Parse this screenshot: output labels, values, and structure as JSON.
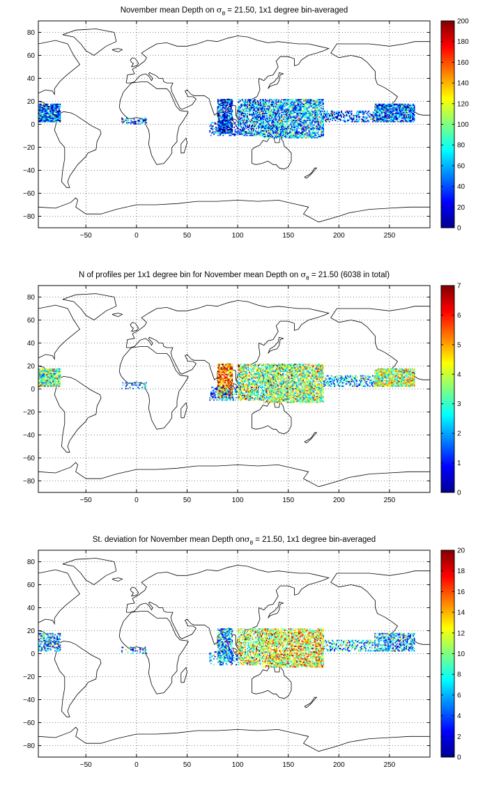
{
  "chart_data": [
    {
      "type": "heatmap",
      "title": {
        "pre": "November mean Depth on ",
        "sym": "σ",
        "sub": "θ",
        "post": " = 21.50, 1x1 degree bin-averaged"
      },
      "xlim": [
        -97,
        290
      ],
      "ylim": [
        -90,
        90
      ],
      "xticks": [
        -50,
        0,
        50,
        100,
        150,
        200,
        250
      ],
      "yticks": [
        -80,
        -60,
        -40,
        -20,
        0,
        20,
        40,
        60,
        80
      ],
      "grid": "dotted",
      "colorbar": {
        "min": 0,
        "max": 200,
        "ticks": [
          0,
          20,
          40,
          60,
          80,
          100,
          120,
          140,
          160,
          180,
          200
        ],
        "colormap": "jet"
      },
      "clusters": [
        {
          "region": "Caribbean / Central America",
          "x": [
            -97,
            -75
          ],
          "y": [
            2,
            18
          ],
          "density": 0.85,
          "level": 0.18
        },
        {
          "region": "Gulf of Guinea",
          "x": [
            -15,
            10
          ],
          "y": [
            0,
            6
          ],
          "density": 0.3,
          "level": 0.2
        },
        {
          "region": "Bay of Bengal",
          "x": [
            80,
            95
          ],
          "y": [
            -8,
            22
          ],
          "density": 0.8,
          "level": 0.15
        },
        {
          "region": "Eastern Indian Ocean",
          "x": [
            72,
            100
          ],
          "y": [
            -10,
            2
          ],
          "density": 0.35,
          "level": 0.15
        },
        {
          "region": "South China Sea / Maritime Continent",
          "x": [
            100,
            125
          ],
          "y": [
            -10,
            22
          ],
          "density": 0.6,
          "level": 0.25
        },
        {
          "region": "Western Pacific warm pool",
          "x": [
            125,
            185
          ],
          "y": [
            -12,
            22
          ],
          "density": 0.7,
          "level": 0.3
        },
        {
          "region": "Central Pacific band",
          "x": [
            185,
            235
          ],
          "y": [
            2,
            12
          ],
          "density": 0.45,
          "level": 0.2
        },
        {
          "region": "Eastern Pacific",
          "x": [
            235,
            275
          ],
          "y": [
            2,
            18
          ],
          "density": 0.8,
          "level": 0.2
        }
      ]
    },
    {
      "type": "heatmap",
      "title": {
        "pre": "N of profiles per 1x1 degree bin for November mean Depth on ",
        "sym": "σ",
        "sub": "θ",
        "post": " = 21.50 (6038 in total)"
      },
      "xlim": [
        -97,
        290
      ],
      "ylim": [
        -90,
        90
      ],
      "xticks": [
        -50,
        0,
        50,
        100,
        150,
        200,
        250
      ],
      "yticks": [
        -80,
        -60,
        -40,
        -20,
        0,
        20,
        40,
        60,
        80
      ],
      "grid": "dotted",
      "colorbar": {
        "min": 0,
        "max": 7,
        "ticks": [
          0,
          1,
          2,
          3,
          4,
          5,
          6,
          7
        ],
        "colormap": "jet"
      },
      "clusters": [
        {
          "region": "Caribbean / Central America",
          "x": [
            -97,
            -75
          ],
          "y": [
            2,
            18
          ],
          "density": 0.85,
          "level": 0.45
        },
        {
          "region": "Gulf of Guinea",
          "x": [
            -15,
            10
          ],
          "y": [
            0,
            6
          ],
          "density": 0.3,
          "level": 0.3
        },
        {
          "region": "Bay of Bengal",
          "x": [
            80,
            95
          ],
          "y": [
            -8,
            22
          ],
          "density": 0.8,
          "level": 0.75
        },
        {
          "region": "Eastern Indian Ocean",
          "x": [
            72,
            100
          ],
          "y": [
            -10,
            2
          ],
          "density": 0.35,
          "level": 0.25
        },
        {
          "region": "South China Sea / Maritime Continent",
          "x": [
            100,
            125
          ],
          "y": [
            -10,
            22
          ],
          "density": 0.6,
          "level": 0.5
        },
        {
          "region": "Western Pacific warm pool",
          "x": [
            125,
            185
          ],
          "y": [
            -12,
            22
          ],
          "density": 0.7,
          "level": 0.5
        },
        {
          "region": "Central Pacific band",
          "x": [
            185,
            235
          ],
          "y": [
            2,
            12
          ],
          "density": 0.45,
          "level": 0.3
        },
        {
          "region": "Eastern Pacific",
          "x": [
            235,
            275
          ],
          "y": [
            2,
            18
          ],
          "density": 0.8,
          "level": 0.55
        }
      ]
    },
    {
      "type": "heatmap",
      "title": {
        "pre": "St. deviation for November mean Depth on",
        "sym": "σ",
        "sub": "θ",
        "post": " = 21.50, 1x1 degree bin-averaged"
      },
      "xlim": [
        -97,
        290
      ],
      "ylim": [
        -90,
        90
      ],
      "xticks": [
        -50,
        0,
        50,
        100,
        150,
        200,
        250
      ],
      "yticks": [
        -80,
        -60,
        -40,
        -20,
        0,
        20,
        40,
        60,
        80
      ],
      "grid": "dotted",
      "colorbar": {
        "min": 0,
        "max": 20,
        "ticks": [
          0,
          2,
          4,
          6,
          8,
          10,
          12,
          14,
          16,
          18,
          20
        ],
        "colormap": "jet"
      },
      "clusters": [
        {
          "region": "Caribbean / Central America",
          "x": [
            -97,
            -75
          ],
          "y": [
            2,
            18
          ],
          "density": 0.5,
          "level": 0.25
        },
        {
          "region": "Gulf of Guinea",
          "x": [
            -15,
            10
          ],
          "y": [
            0,
            6
          ],
          "density": 0.2,
          "level": 0.2
        },
        {
          "region": "Bay of Bengal",
          "x": [
            80,
            95
          ],
          "y": [
            -8,
            22
          ],
          "density": 0.65,
          "level": 0.3
        },
        {
          "region": "Eastern Indian Ocean",
          "x": [
            72,
            100
          ],
          "y": [
            -10,
            2
          ],
          "density": 0.25,
          "level": 0.25
        },
        {
          "region": "South China Sea / Maritime Continent",
          "x": [
            100,
            125
          ],
          "y": [
            -10,
            22
          ],
          "density": 0.55,
          "level": 0.55
        },
        {
          "region": "Western Pacific warm pool",
          "x": [
            125,
            185
          ],
          "y": [
            -12,
            22
          ],
          "density": 0.65,
          "level": 0.6
        },
        {
          "region": "Central Pacific band",
          "x": [
            185,
            235
          ],
          "y": [
            2,
            12
          ],
          "density": 0.4,
          "level": 0.35
        },
        {
          "region": "Eastern Pacific",
          "x": [
            235,
            275
          ],
          "y": [
            2,
            18
          ],
          "density": 0.55,
          "level": 0.3
        }
      ]
    }
  ]
}
